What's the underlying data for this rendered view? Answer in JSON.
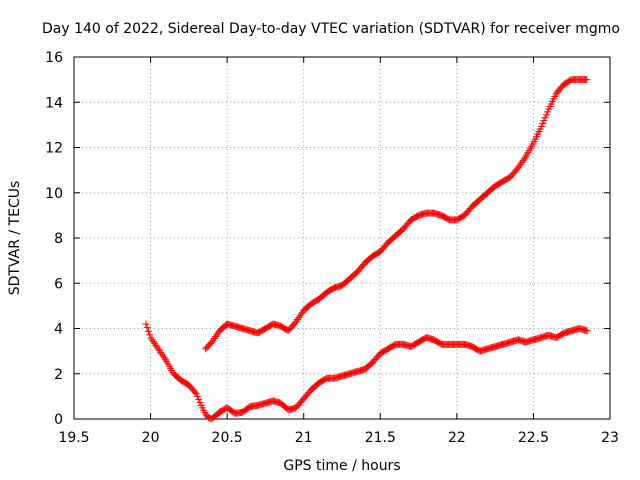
{
  "chart_data": {
    "type": "scatter",
    "title": "Day 140 of 2022, Sidereal Day-to-day VTEC variation (SDTVAR) for receiver mgmo",
    "xlabel": "GPS time / hours",
    "ylabel": "SDTVAR / TECUs",
    "xlim": [
      19.5,
      23
    ],
    "ylim": [
      0,
      16
    ],
    "xticks": [
      "19.5",
      "20",
      "20.5",
      "21",
      "21.5",
      "22",
      "22.5",
      "23"
    ],
    "yticks": [
      "0",
      "2",
      "4",
      "6",
      "8",
      "10",
      "12",
      "14",
      "16"
    ],
    "grid": true,
    "marker": "+",
    "color": "#ff0000",
    "series": [
      {
        "x": [
          19.97,
          20.0,
          20.05,
          20.1,
          20.15,
          20.2,
          20.25,
          20.3,
          20.33,
          20.36,
          20.38,
          20.4,
          20.45,
          20.5,
          20.55,
          20.6,
          20.65,
          20.7,
          20.75,
          20.8,
          20.85,
          20.9,
          20.95,
          21.0,
          21.05,
          21.1,
          21.15,
          21.2,
          21.25,
          21.3,
          21.35,
          21.4,
          21.45,
          21.5,
          21.55,
          21.6,
          21.65,
          21.7,
          21.75,
          21.8,
          21.85,
          21.9,
          21.95,
          22.0,
          22.05,
          22.1,
          22.15,
          22.2,
          22.25,
          22.3,
          22.35,
          22.4,
          22.45,
          22.5,
          22.55,
          22.6,
          22.65,
          22.7,
          22.75,
          22.8,
          22.85
        ],
        "y": [
          4.2,
          3.6,
          3.1,
          2.6,
          2.0,
          1.7,
          1.5,
          1.1,
          0.6,
          0.2,
          0.05,
          0.0,
          0.3,
          0.5,
          0.25,
          0.3,
          0.55,
          0.6,
          0.7,
          0.8,
          0.7,
          0.4,
          0.5,
          0.9,
          1.3,
          1.6,
          1.8,
          1.8,
          1.9,
          2.0,
          2.1,
          2.2,
          2.5,
          2.9,
          3.1,
          3.3,
          3.3,
          3.2,
          3.4,
          3.6,
          3.5,
          3.3,
          3.3,
          3.3,
          3.3,
          3.2,
          3.0,
          3.1,
          3.2,
          3.3,
          3.4,
          3.5,
          3.4,
          3.5,
          3.6,
          3.7,
          3.6,
          3.8,
          3.9,
          4.0,
          3.9
        ]
      },
      {
        "x": [
          20.36,
          20.4,
          20.45,
          20.5,
          20.55,
          20.6,
          20.65,
          20.7,
          20.75,
          20.8,
          20.85,
          20.9,
          20.95,
          21.0,
          21.05,
          21.1,
          21.15,
          21.2,
          21.25,
          21.3,
          21.35,
          21.4,
          21.45,
          21.5,
          21.55,
          21.6,
          21.65,
          21.7,
          21.75,
          21.8,
          21.85,
          21.9,
          21.95,
          22.0,
          22.05,
          22.1,
          22.15,
          22.2,
          22.25,
          22.3,
          22.35,
          22.4,
          22.45,
          22.5,
          22.55,
          22.6,
          22.65,
          22.7,
          22.75,
          22.8,
          22.85
        ],
        "y": [
          3.1,
          3.4,
          3.9,
          4.2,
          4.1,
          4.0,
          3.9,
          3.8,
          4.0,
          4.2,
          4.1,
          3.9,
          4.3,
          4.8,
          5.1,
          5.3,
          5.6,
          5.8,
          5.9,
          6.2,
          6.5,
          6.9,
          7.2,
          7.4,
          7.8,
          8.1,
          8.4,
          8.8,
          9.0,
          9.1,
          9.1,
          9.0,
          8.8,
          8.8,
          9.0,
          9.4,
          9.7,
          10.0,
          10.3,
          10.5,
          10.7,
          11.1,
          11.6,
          12.2,
          12.9,
          13.7,
          14.4,
          14.8,
          15.0,
          15.0,
          15.0
        ]
      }
    ]
  }
}
